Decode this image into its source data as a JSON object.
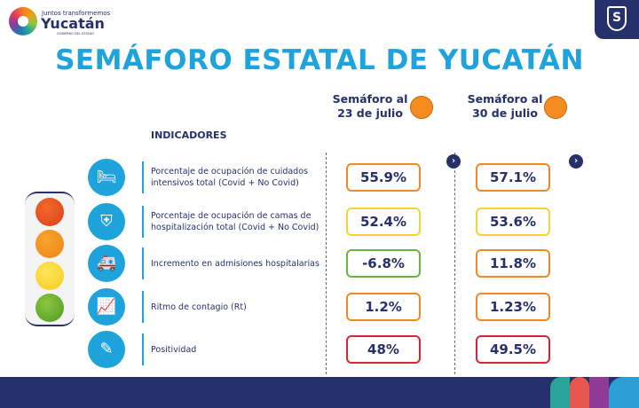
{
  "logo": {
    "tagline": "Juntos transformemos",
    "name": "Yucatán",
    "subtitle": "GOBIERNO DEL ESTADO"
  },
  "title": "SEMÁFORO ESTATAL DE YUCATÁN",
  "indicators_header": "INDICADORES",
  "columns": [
    {
      "label_line1": "Semáforo al",
      "label_line2": "23 de julio",
      "semaphore_color": "#f68b1f"
    },
    {
      "label_line1": "Semáforo al",
      "label_line2": "30 de julio",
      "semaphore_color": "#f68b1f"
    }
  ],
  "colors": {
    "red": "#d3263a",
    "orange": "#f08a24",
    "yellow": "#f5d33a",
    "green": "#6cb33f",
    "brand_blue": "#1fa3dc",
    "navy": "#26306a"
  },
  "rows": [
    {
      "icon": "icu-bed-icon",
      "label": "Porcentaje de ocupación de cuidados intensivos total (Covid + No Covid)",
      "values": [
        "55.9%",
        "57.1%"
      ],
      "status": [
        "orange",
        "orange"
      ]
    },
    {
      "icon": "hospital-bed-icon",
      "label": "Porcentaje de ocupación de camas de hospitalización total (Covid + No Covid)",
      "values": [
        "52.4%",
        "53.6%"
      ],
      "status": [
        "yellow",
        "yellow"
      ]
    },
    {
      "icon": "ambulance-icon",
      "label": "Incremento en admisiones hospitalarias",
      "values": [
        "-6.8%",
        "11.8%"
      ],
      "status": [
        "green",
        "orange"
      ]
    },
    {
      "icon": "chart-icon",
      "label": "Ritmo de contagio (Rt)",
      "values": [
        "1.2%",
        "1.23%"
      ],
      "status": [
        "orange",
        "orange"
      ]
    },
    {
      "icon": "swab-test-icon",
      "label": "Positividad",
      "values": [
        "48%",
        "49.5%"
      ],
      "status": [
        "red",
        "red"
      ]
    }
  ]
}
